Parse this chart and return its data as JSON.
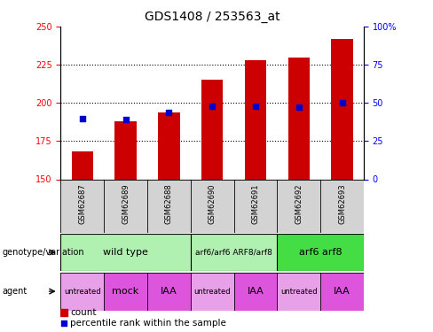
{
  "title": "GDS1408 / 253563_at",
  "samples": [
    "GSM62687",
    "GSM62689",
    "GSM62688",
    "GSM62690",
    "GSM62691",
    "GSM62692",
    "GSM62693"
  ],
  "bar_values": [
    168,
    188,
    194,
    215,
    228,
    230,
    242
  ],
  "bar_bottom": 150,
  "percentile_values": [
    190,
    189,
    194,
    198,
    198,
    197,
    200
  ],
  "ylim_left": [
    150,
    250
  ],
  "ylim_right": [
    0,
    100
  ],
  "yticks_left": [
    150,
    175,
    200,
    225,
    250
  ],
  "yticks_right": [
    0,
    25,
    50,
    75,
    100
  ],
  "bar_color": "#cc0000",
  "percentile_color": "#0000cc",
  "genotype_groups": [
    {
      "label": "wild type",
      "start": 0,
      "end": 3,
      "color": "#b0f0b0"
    },
    {
      "label": "arf6/arf6 ARF8/arf8",
      "start": 3,
      "end": 5,
      "color": "#b0f0b0"
    },
    {
      "label": "arf6 arf8",
      "start": 5,
      "end": 7,
      "color": "#44dd44"
    }
  ],
  "agent_groups": [
    {
      "label": "untreated",
      "start": 0,
      "end": 1,
      "color": "#e8a0e8"
    },
    {
      "label": "mock",
      "start": 1,
      "end": 2,
      "color": "#dd55dd"
    },
    {
      "label": "IAA",
      "start": 2,
      "end": 3,
      "color": "#dd55dd"
    },
    {
      "label": "untreated",
      "start": 3,
      "end": 4,
      "color": "#e8a0e8"
    },
    {
      "label": "IAA",
      "start": 4,
      "end": 5,
      "color": "#dd55dd"
    },
    {
      "label": "untreated",
      "start": 5,
      "end": 6,
      "color": "#e8a0e8"
    },
    {
      "label": "IAA",
      "start": 6,
      "end": 7,
      "color": "#dd55dd"
    }
  ],
  "legend_count_color": "#cc0000",
  "legend_percentile_color": "#0000cc"
}
